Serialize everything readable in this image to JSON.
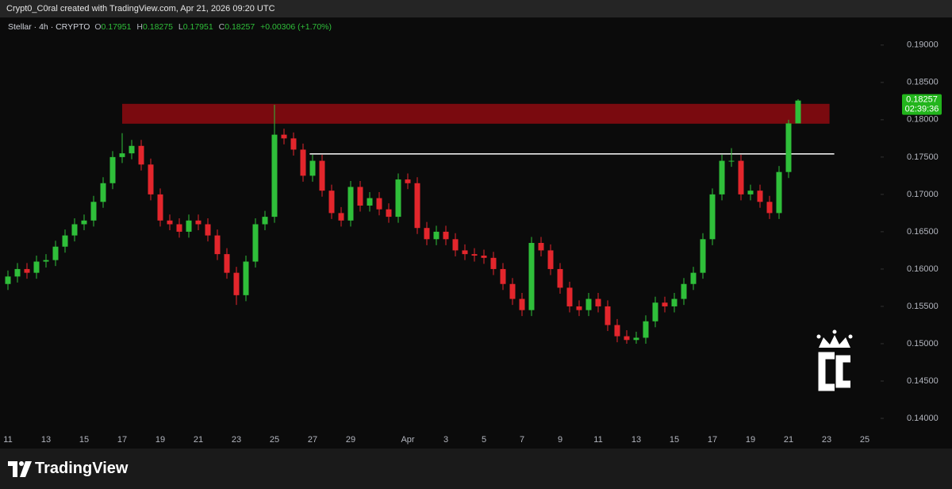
{
  "header": {
    "credit": "Crypt0_C0ral created with TradingView.com, Apr 21, 2026 09:20 UTC"
  },
  "legend": {
    "symbol": "Stellar · 4h · CRYPTO",
    "o_key": "O",
    "o": 0.17951,
    "h_key": "H",
    "h": 0.18275,
    "l_key": "L",
    "l": 0.17951,
    "c_key": "C",
    "c": 0.18257,
    "change": "+0.00306 (+1.70%)"
  },
  "footer": {
    "brand": "TradingView"
  },
  "chart_data": {
    "type": "candlestick",
    "up_color": "#2fbf3a",
    "down_color": "#e3262c",
    "categories": [
      "11",
      null,
      null,
      null,
      "13",
      null,
      null,
      null,
      "15",
      null,
      null,
      null,
      "17",
      null,
      null,
      null,
      "19",
      null,
      null,
      null,
      "21",
      null,
      null,
      null,
      "23",
      null,
      null,
      null,
      "25",
      null,
      null,
      null,
      "27",
      null,
      null,
      null,
      "29",
      null,
      null,
      null,
      null,
      null,
      "Apr",
      null,
      null,
      null,
      "3",
      null,
      null,
      null,
      "5",
      null,
      null,
      null,
      "7",
      null,
      null,
      null,
      "9",
      null,
      null,
      null,
      "11",
      null,
      null,
      null,
      "13",
      null,
      null,
      null,
      "15",
      null,
      null,
      null,
      "17",
      null,
      null,
      null,
      "19",
      null,
      null,
      null,
      "21",
      null,
      null,
      null,
      "23",
      null,
      null,
      null,
      "25"
    ],
    "open": [
      0.158,
      0.159,
      0.16,
      0.1595,
      0.161,
      0.1612,
      0.163,
      0.1645,
      0.166,
      0.1665,
      0.169,
      0.1715,
      0.175,
      0.1755,
      0.1765,
      0.174,
      0.17,
      0.1665,
      0.166,
      0.165,
      0.1665,
      0.166,
      0.1645,
      0.162,
      0.1595,
      0.1565,
      0.161,
      0.166,
      0.167,
      0.178,
      0.1775,
      0.176,
      0.1725,
      0.1745,
      0.1705,
      0.1675,
      0.1665,
      0.171,
      0.1685,
      0.1695,
      0.168,
      0.167,
      0.172,
      0.1715,
      0.1655,
      0.164,
      0.165,
      0.164,
      0.1625,
      0.162,
      0.1618,
      0.1615,
      0.16,
      0.158,
      0.156,
      0.1545,
      0.1635,
      0.1625,
      0.16,
      0.1575,
      0.155,
      0.1545,
      0.156,
      0.155,
      0.1525,
      0.151,
      0.1505,
      0.1508,
      0.153,
      0.1555,
      0.155,
      0.156,
      0.158,
      0.1595,
      0.164,
      0.17,
      0.1745,
      0.1745,
      0.17,
      0.1705,
      0.169,
      0.1675,
      0.173,
      0.17951,
      null,
      null,
      null,
      null,
      null,
      null,
      null
    ],
    "high": [
      0.1598,
      0.1608,
      0.1608,
      0.1618,
      0.162,
      0.1638,
      0.1653,
      0.1668,
      0.1673,
      0.1698,
      0.1723,
      0.1758,
      0.1782,
      0.1773,
      0.1773,
      0.1748,
      0.1708,
      0.1673,
      0.1668,
      0.1673,
      0.1673,
      0.1668,
      0.1653,
      0.1628,
      0.1603,
      0.1618,
      0.1668,
      0.1678,
      0.182,
      0.1788,
      0.1783,
      0.1768,
      0.1753,
      0.1753,
      0.1713,
      0.1683,
      0.1718,
      0.1718,
      0.1703,
      0.1703,
      0.1688,
      0.1728,
      0.1728,
      0.1723,
      0.1663,
      0.1658,
      0.1658,
      0.1648,
      0.1633,
      0.1628,
      0.1626,
      0.1623,
      0.1608,
      0.1588,
      0.1568,
      0.1643,
      0.1643,
      0.1633,
      0.1608,
      0.1583,
      0.1558,
      0.1568,
      0.1568,
      0.1558,
      0.1533,
      0.1518,
      0.1516,
      0.1538,
      0.1563,
      0.1563,
      0.1568,
      0.1588,
      0.1603,
      0.1648,
      0.1708,
      0.1753,
      0.1762,
      0.1753,
      0.1713,
      0.1713,
      0.1698,
      0.1738,
      0.18,
      0.18275,
      null,
      null,
      null,
      null,
      null,
      null,
      null
    ],
    "low": [
      0.1572,
      0.1582,
      0.1587,
      0.1587,
      0.1602,
      0.1604,
      0.1622,
      0.1637,
      0.1652,
      0.1657,
      0.1682,
      0.1707,
      0.1742,
      0.1747,
      0.1732,
      0.1692,
      0.1657,
      0.1652,
      0.1642,
      0.1642,
      0.1652,
      0.1637,
      0.1612,
      0.1587,
      0.1552,
      0.1557,
      0.1602,
      0.1652,
      0.1662,
      0.1767,
      0.1752,
      0.1717,
      0.1717,
      0.1697,
      0.1667,
      0.1657,
      0.1657,
      0.1677,
      0.1677,
      0.1672,
      0.1662,
      0.1662,
      0.1707,
      0.1647,
      0.1632,
      0.1632,
      0.1632,
      0.1617,
      0.1612,
      0.161,
      0.1607,
      0.1592,
      0.1572,
      0.1552,
      0.1537,
      0.1537,
      0.1617,
      0.1592,
      0.1567,
      0.1542,
      0.1537,
      0.1537,
      0.1542,
      0.1517,
      0.1502,
      0.15,
      0.15,
      0.15,
      0.1522,
      0.1542,
      0.1542,
      0.1552,
      0.1572,
      0.1587,
      0.1632,
      0.1692,
      0.1737,
      0.1692,
      0.1692,
      0.1682,
      0.1667,
      0.1667,
      0.1722,
      0.17951,
      null,
      null,
      null,
      null,
      null,
      null,
      null
    ],
    "close": [
      0.159,
      0.16,
      0.1595,
      0.161,
      0.1612,
      0.163,
      0.1645,
      0.166,
      0.1665,
      0.169,
      0.1715,
      0.175,
      0.1755,
      0.1765,
      0.174,
      0.17,
      0.1665,
      0.166,
      0.165,
      0.1665,
      0.166,
      0.1645,
      0.162,
      0.1595,
      0.1565,
      0.161,
      0.166,
      0.167,
      0.178,
      0.1775,
      0.176,
      0.1725,
      0.1745,
      0.1705,
      0.1675,
      0.1665,
      0.171,
      0.1685,
      0.1695,
      0.168,
      0.167,
      0.172,
      0.1715,
      0.1655,
      0.164,
      0.165,
      0.164,
      0.1625,
      0.162,
      0.1618,
      0.1615,
      0.16,
      0.158,
      0.156,
      0.1545,
      0.1635,
      0.1625,
      0.16,
      0.1575,
      0.155,
      0.1545,
      0.156,
      0.155,
      0.1525,
      0.151,
      0.1505,
      0.1508,
      0.153,
      0.1555,
      0.155,
      0.156,
      0.158,
      0.1595,
      0.164,
      0.17,
      0.1745,
      0.1745,
      0.17,
      0.1705,
      0.169,
      0.1675,
      0.173,
      0.17951,
      0.18257,
      null,
      null,
      null,
      null,
      null,
      null,
      null
    ],
    "ylim": [
      0.1383,
      0.1937
    ],
    "yticks": [
      {
        "value": 0.14,
        "label": "0.14000"
      },
      {
        "value": 0.145,
        "label": "0.14500"
      },
      {
        "value": 0.15,
        "label": "0.15000"
      },
      {
        "value": 0.155,
        "label": "0.15500"
      },
      {
        "value": 0.16,
        "label": "0.16000"
      },
      {
        "value": 0.165,
        "label": "0.16500"
      },
      {
        "value": 0.17,
        "label": "0.17000"
      },
      {
        "value": 0.175,
        "label": "0.17500"
      },
      {
        "value": 0.18,
        "label": "0.18000"
      },
      {
        "value": 0.185,
        "label": "0.18500"
      },
      {
        "value": 0.19,
        "label": "0.19000"
      }
    ],
    "zone": {
      "x": [
        12,
        86.3
      ],
      "y": [
        0.17947,
        0.18213
      ],
      "color": "#7a0a0f"
    },
    "level": {
      "x": [
        31.7,
        86.8
      ],
      "value": 0.17543,
      "color": "#ffffff"
    },
    "last_price": {
      "value": 0.18257,
      "label": "0.18257",
      "countdown": "02:39:36",
      "color": "#22b51c"
    },
    "grid": false
  }
}
